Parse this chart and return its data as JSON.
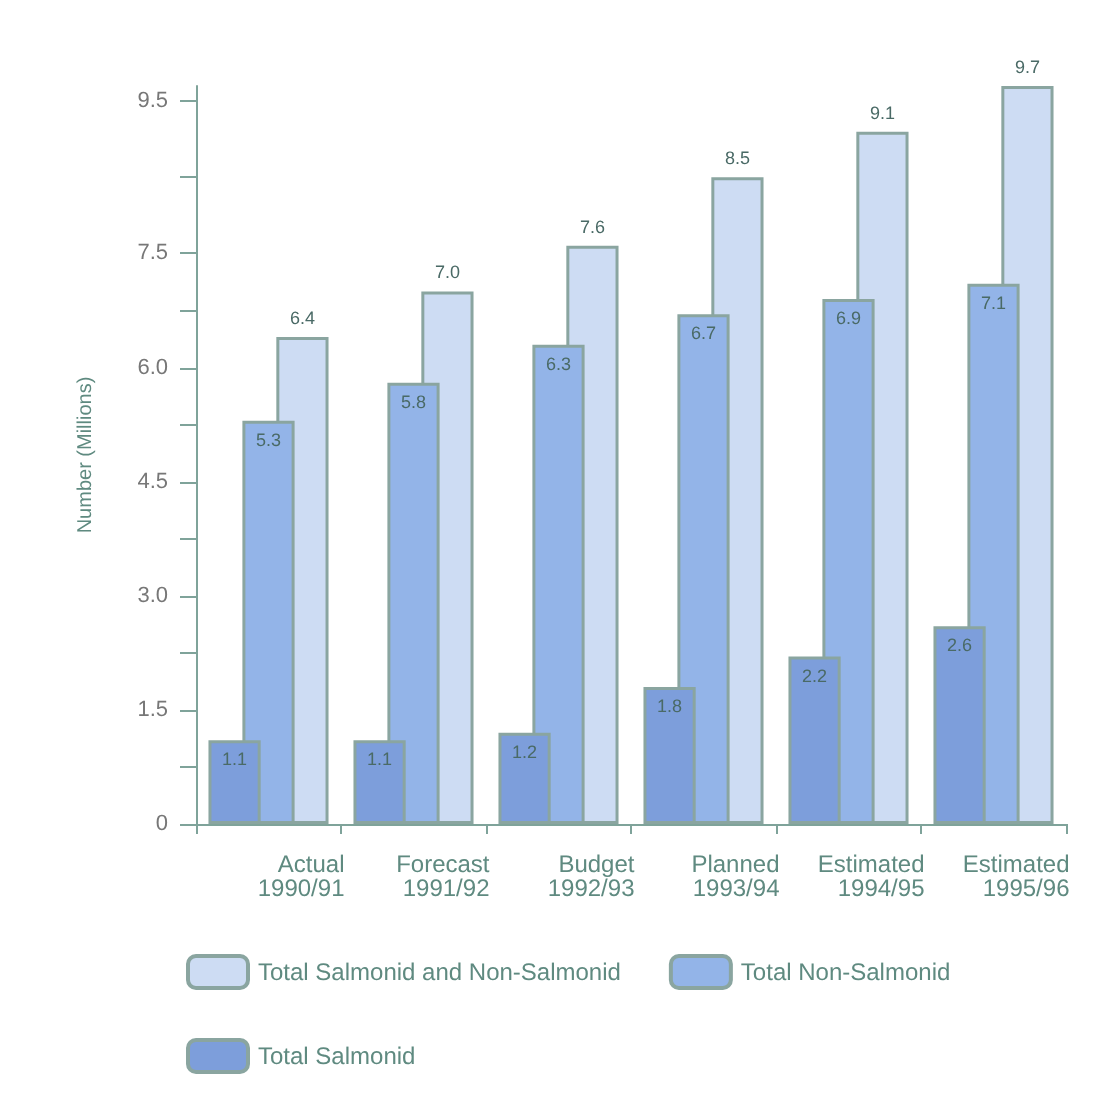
{
  "chart_data": {
    "type": "bar",
    "ylabel": "Number (Millions)",
    "categories": [
      "Actual\n1990/91",
      "Forecast\n1991/92",
      "Budget\n1992/93",
      "Planned\n1993/94",
      "Estimated\n1994/95",
      "Estimated\n1995/96"
    ],
    "series": [
      {
        "name": "Total Salmonid and Non-Salmonid",
        "color": "#cddcf3",
        "values": [
          6.4,
          7.0,
          7.6,
          8.5,
          9.1,
          9.7
        ],
        "value_labels": [
          "6.4",
          "7.0",
          "7.6",
          "8.5",
          "9.1",
          "9.7"
        ]
      },
      {
        "name": "Total Non-Salmonid",
        "color": "#93b4e8",
        "values": [
          5.3,
          5.8,
          6.3,
          6.7,
          6.9,
          7.1
        ],
        "value_labels": [
          "5.3",
          "5.8",
          "6.3",
          "6.7",
          "6.9",
          "7.1"
        ]
      },
      {
        "name": "Total Salmonid",
        "color": "#7d9edb",
        "values": [
          1.1,
          1.1,
          1.2,
          1.8,
          2.2,
          2.6
        ],
        "value_labels": [
          "1.1",
          "1.1",
          "1.2",
          "1.8",
          "2.2",
          "2.6"
        ]
      }
    ],
    "ylim": [
      0,
      9.7
    ],
    "yticks": [
      0,
      {
        "value": 0.75,
        "label": null
      },
      1.5,
      {
        "value": 2.25,
        "label": null
      },
      {
        "value": 3,
        "label": "3.0"
      },
      {
        "value": 3.75,
        "label": null
      },
      4.5,
      {
        "value": 5.25,
        "label": null
      },
      {
        "value": 6,
        "label": "6.0"
      },
      {
        "value": 6.75,
        "label": null
      },
      7.5,
      {
        "value": 8.5,
        "label": null
      },
      9.5
    ],
    "grid": false,
    "legend": "bottom left"
  }
}
